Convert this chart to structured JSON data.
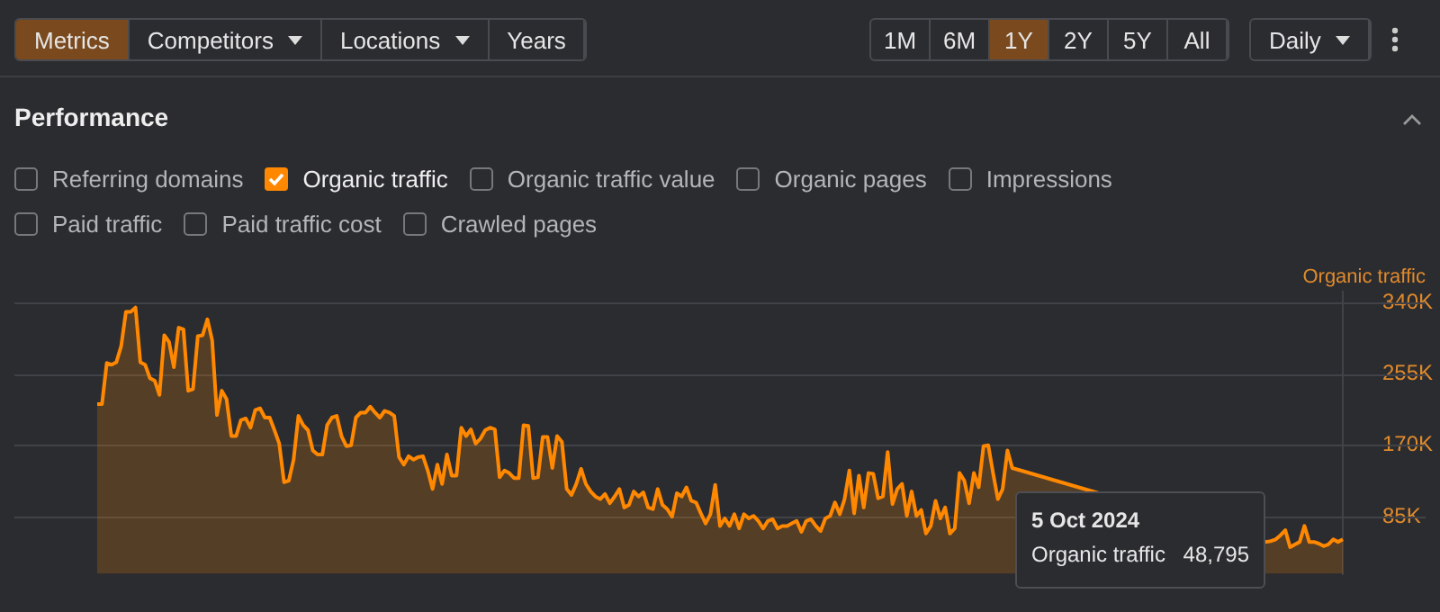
{
  "chart_data": {
    "type": "area",
    "title": "Performance",
    "ylabel": "Organic traffic",
    "categories": [
      null,
      null,
      null,
      null,
      null,
      null,
      null,
      null,
      null,
      null,
      null,
      null,
      null,
      null,
      null,
      null,
      null,
      null,
      null,
      null,
      null,
      null,
      null,
      null,
      null,
      null,
      null,
      null,
      null,
      null,
      null,
      null,
      null,
      null,
      null,
      null,
      null,
      null,
      null,
      null,
      null,
      null,
      null,
      null,
      null,
      null,
      null,
      null,
      null,
      null,
      null,
      null,
      null,
      null,
      null,
      null,
      null,
      null,
      null,
      null,
      null,
      null,
      null,
      null,
      null,
      null,
      null,
      null,
      null,
      null,
      null,
      null,
      null,
      null,
      null,
      null,
      null,
      null,
      null,
      null,
      null,
      null,
      null,
      null,
      null,
      null,
      null,
      null,
      null,
      null,
      null,
      null,
      null,
      null,
      null,
      null,
      null,
      null,
      null,
      null,
      null,
      null,
      null,
      null,
      null,
      null,
      null,
      null,
      null,
      null,
      null,
      null,
      null,
      null,
      null,
      null,
      null,
      null,
      null,
      null,
      null,
      null,
      null,
      null,
      null,
      null,
      null,
      null,
      null,
      null,
      null,
      null,
      null,
      null,
      null,
      null,
      null,
      null,
      null,
      null,
      null,
      null,
      null,
      null,
      null,
      null,
      null,
      null,
      null,
      null,
      null,
      null,
      null,
      null,
      null,
      null,
      null,
      null,
      null,
      null,
      null,
      null,
      null,
      null,
      null,
      null,
      null,
      null,
      null,
      null,
      null,
      null,
      null,
      null,
      null,
      null,
      null,
      null,
      null,
      null,
      null,
      null,
      null,
      null,
      null,
      null,
      null,
      null,
      null,
      null,
      null,
      null,
      null,
      null,
      null,
      null,
      null,
      null,
      null,
      null,
      null,
      null,
      null,
      null,
      null,
      null,
      null,
      null,
      null,
      null,
      null,
      null,
      null,
      null,
      null,
      null,
      null,
      null,
      null,
      null,
      null,
      null,
      null,
      null,
      null,
      null,
      null,
      null,
      null,
      null,
      null,
      null,
      null,
      null,
      null,
      null,
      null,
      null,
      null,
      null,
      null,
      null,
      null,
      null,
      null,
      null,
      null,
      null,
      null,
      null,
      null,
      null,
      null,
      null,
      null,
      null,
      null,
      null,
      null,
      null,
      null
    ],
    "series": [
      {
        "color": "#ff8800",
        "values": [
          219000,
          219000,
          268000,
          266000,
          269000,
          288000,
          329000,
          329000,
          334000,
          269000,
          266000,
          250000,
          247000,
          230000,
          301000,
          293000,
          263000,
          310000,
          308000,
          235000,
          237000,
          300000,
          301000,
          320000,
          295000,
          206000,
          235000,
          225000,
          181000,
          181000,
          200000,
          202000,
          191000,
          212000,
          214000,
          203000,
          203000,
          188000,
          172000,
          126000,
          128000,
          153000,
          205000,
          194000,
          188000,
          164000,
          159000,
          159000,
          194000,
          203000,
          205000,
          181000,
          169000,
          170000,
          203000,
          209000,
          209000,
          216000,
          209000,
          203000,
          211000,
          209000,
          205000,
          156000,
          147000,
          157000,
          153000,
          156000,
          157000,
          140000,
          118000,
          147000,
          124000,
          159000,
          134000,
          134000,
          191000,
          181000,
          189000,
          172000,
          178000,
          188000,
          191000,
          189000,
          132000,
          140000,
          137000,
          131000,
          131000,
          194000,
          193000,
          131000,
          132000,
          180000,
          180000,
          143000,
          181000,
          174000,
          118000,
          111000,
          124000,
          142000,
          124000,
          115000,
          109000,
          106000,
          112000,
          101000,
          109000,
          118000,
          96000,
          99000,
          115000,
          109000,
          114000,
          96000,
          94000,
          118000,
          99000,
          94000,
          85000,
          113000,
          109000,
          120000,
          104000,
          102000,
          89000,
          77000,
          88000,
          123000,
          74000,
          83000,
          74000,
          88000,
          71000,
          88000,
          83000,
          86000,
          80000,
          71000,
          80000,
          82000,
          71000,
          74000,
          74000,
          77000,
          80000,
          67000,
          80000,
          82000,
          74000,
          68000,
          83000,
          86000,
          102000,
          88000,
          106000,
          140000,
          89000,
          134000,
          96000,
          137000,
          136000,
          107000,
          109000,
          162000,
          100000,
          118000,
          124000,
          86000,
          115000,
          86000,
          93000,
          65000,
          74000,
          104000,
          83000,
          96000,
          65000,
          71000,
          137000,
          128000,
          101000,
          137000,
          120000,
          169000,
          170000,
          137000,
          106000,
          118000,
          164000,
          143000,
          null,
          null,
          null,
          null,
          null,
          null,
          null,
          null,
          null,
          null,
          null,
          null,
          null,
          null,
          null,
          null,
          null,
          null,
          null,
          null,
          null,
          null,
          null,
          null,
          null,
          null,
          null,
          null,
          null,
          null,
          null,
          null,
          null,
          null,
          null,
          null,
          null,
          null,
          null,
          null,
          null,
          null,
          null,
          null,
          null,
          null,
          null,
          null,
          null,
          null,
          null,
          null,
          55000,
          56000,
          58000,
          63000,
          69000,
          48795,
          52000,
          55000,
          74000,
          55000,
          55000,
          53000,
          50000,
          52000,
          58000,
          55000,
          58000
        ]
      }
    ],
    "ylim": [
      17000,
      353000
    ],
    "yticks": [
      {
        "value": 85000,
        "label": "85K"
      },
      {
        "value": 170000,
        "label": "170K"
      },
      {
        "value": 255000,
        "label": "255K"
      },
      {
        "value": 340000,
        "label": "340K"
      }
    ],
    "tick_labels": "y",
    "grid": "y",
    "legend": false,
    "annotations": [
      "Metrics",
      "Competitors",
      "Locations",
      "Years",
      "1M",
      "6M",
      "1Y",
      "2Y",
      "5Y",
      "All",
      "Daily",
      "Referring domains",
      "Organic traffic",
      "Organic traffic value",
      "Organic pages",
      "Impressions",
      "Paid traffic",
      "Paid traffic cost",
      "Crawled pages",
      "5 Oct 2024",
      "Organic traffic",
      "48,795"
    ]
  }
}
